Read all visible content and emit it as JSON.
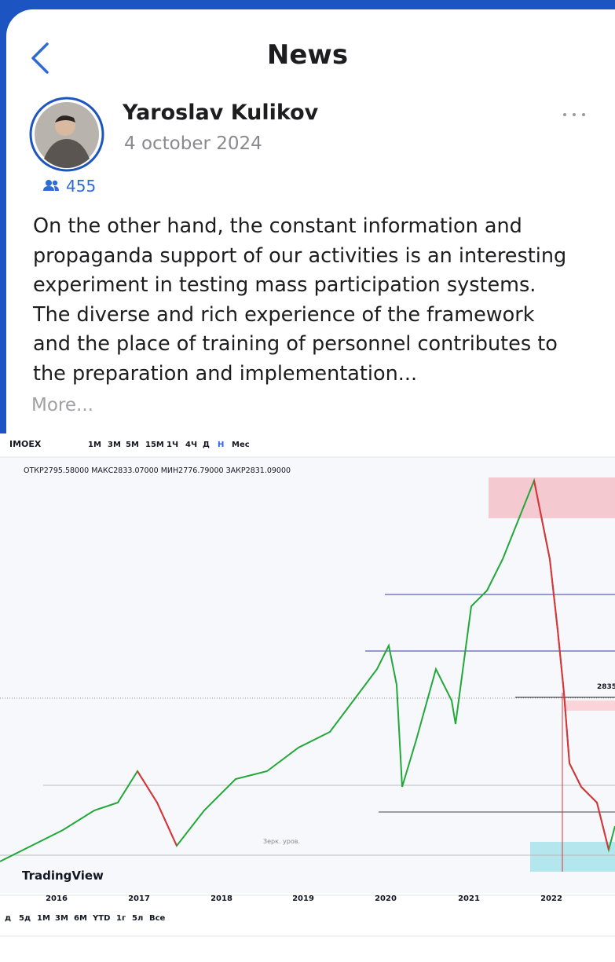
{
  "header": {
    "title": "News"
  },
  "post": {
    "author": "Yaroslav Kulikov",
    "date": "4 october 2024",
    "followers": 455,
    "text": "On the other hand, the constant information and propaganda support of our activities is an interesting experiment in testing mass participation systems. The diverse and rich experience of the framework and the place of training of personnel contributes to the preparation and implementation...",
    "more": "More..."
  },
  "image": {
    "symbol": "IMOEX",
    "intervals": [
      "1M",
      "3M",
      "5M",
      "15M",
      "1Ч",
      "4Ч",
      "Д",
      "Н",
      "Мес"
    ],
    "ohlc": "ОТКР2795.58000 МАКС2833.07000 МИН2776.79000 ЗАКР2831.09000",
    "price_label": "2835",
    "level_label": "Зерк. уров.",
    "brand": "TradingView",
    "years": [
      "2016",
      "2017",
      "2018",
      "2019",
      "2020",
      "2021",
      "2022"
    ],
    "ranges": [
      "д",
      "5д",
      "1М",
      "3М",
      "6М",
      "YTD",
      "1г",
      "5л",
      "Все"
    ]
  }
}
